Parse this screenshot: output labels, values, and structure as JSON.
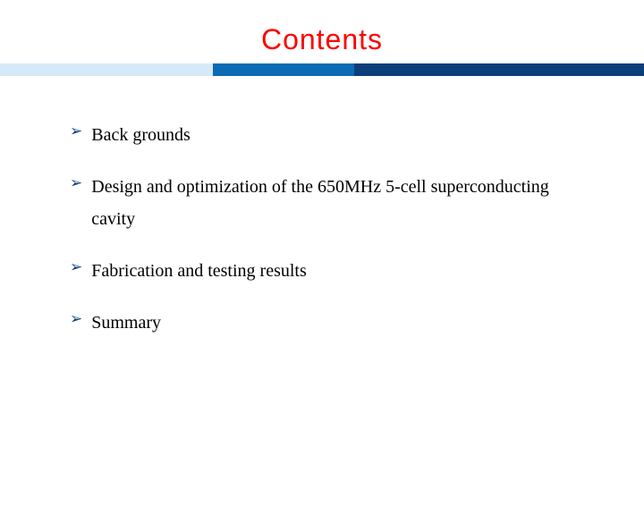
{
  "title": {
    "text": "Contents",
    "color": "#ff0000",
    "fontsize": 32
  },
  "header_bar": {
    "segments": [
      {
        "color": "#d6e9f8",
        "width_pct": 33
      },
      {
        "color": "#0b6bb3",
        "width_pct": 22
      },
      {
        "color": "#0a3f7a",
        "width_pct": 45
      }
    ]
  },
  "bullet": {
    "glyph": "➢",
    "color": "#0a3f7a",
    "fontsize": 17
  },
  "items": [
    {
      "text": "Back grounds"
    },
    {
      "text": "Design and optimization of the 650MHz 5-cell superconducting cavity"
    },
    {
      "text": "Fabrication and testing results"
    },
    {
      "text": "Summary"
    }
  ],
  "item_style": {
    "color": "#000000",
    "fontsize": 20
  },
  "background_color": "#ffffff"
}
